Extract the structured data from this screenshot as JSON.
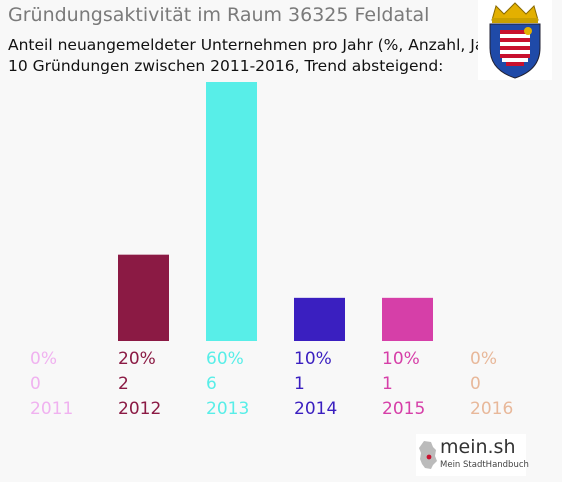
{
  "header": {
    "title": "Gründungsaktivität im Raum 36325 Feldatal",
    "subtitle_line1": "Anteil neuangemeldeter Unternehmen pro Jahr (%, Anzahl, Jahr)",
    "subtitle_line2": "10 Gründungen zwischen 2011-2016, Trend absteigend:"
  },
  "crest": {
    "icon": "hesse-coat-of-arms-icon",
    "colors": [
      "#1f4aa8",
      "#c8102e",
      "#ffffff",
      "#e3b000"
    ]
  },
  "brand": {
    "name": "mein.sh",
    "tagline": "Mein StadtHandbuch",
    "icon": "germany-map-icon",
    "accent": "#c8102e"
  },
  "chart_data": {
    "type": "bar",
    "categories": [
      "2011",
      "2012",
      "2013",
      "2014",
      "2015",
      "2016"
    ],
    "values": [
      0,
      20,
      60,
      10,
      10,
      0
    ],
    "counts": [
      0,
      2,
      6,
      1,
      1,
      0
    ],
    "percent_labels": [
      "0%",
      "20%",
      "60%",
      "10%",
      "10%",
      "0%"
    ],
    "count_labels": [
      "0",
      "2",
      "6",
      "1",
      "1",
      "0"
    ],
    "colors": [
      "#f0b2f0",
      "#8b1a44",
      "#58eee8",
      "#3a1fc0",
      "#d63fa8",
      "#e8b89a"
    ],
    "ylim": [
      0,
      60
    ],
    "grid": false,
    "legend": "none"
  }
}
